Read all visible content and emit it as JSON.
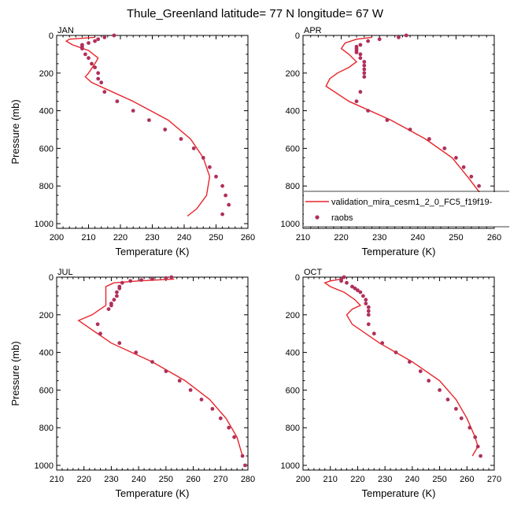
{
  "title": "Thule_Greenland  latitude= 77 N longitude= 67 W",
  "colors": {
    "model": "#e8242a",
    "obs": "#b0305a"
  },
  "legend": {
    "model_label": "validation_mira_cesm1_2_0_FC5_f19f19-",
    "obs_label": "raobs"
  },
  "chart_data": [
    {
      "type": "line",
      "month": "JAN",
      "xlabel": "Temperature (K)",
      "ylabel": "Pressure (mb)",
      "xlim": [
        200,
        260
      ],
      "ylim": [
        1025,
        0
      ],
      "xticks": [
        "200",
        "210",
        "220",
        "230",
        "240",
        "250",
        "260"
      ],
      "yticks": [
        "0",
        "200",
        "400",
        "600",
        "800",
        "1000"
      ],
      "model": {
        "t": [
          212,
          208,
          204,
          203,
          205,
          210,
          213,
          212,
          210,
          209,
          211,
          224,
          235,
          242,
          246,
          248,
          247,
          244,
          241
        ],
        "p": [
          10,
          15,
          20,
          30,
          50,
          80,
          120,
          150,
          200,
          220,
          250,
          350,
          450,
          550,
          650,
          750,
          850,
          920,
          960
        ]
      },
      "obs": {
        "t": [
          218,
          215,
          213,
          212,
          210,
          208,
          208,
          208,
          209,
          210,
          211,
          212,
          213,
          213,
          214,
          215,
          219,
          224,
          229,
          234,
          239,
          243,
          246,
          248,
          250,
          252,
          253,
          254,
          252
        ],
        "p": [
          0,
          10,
          20,
          30,
          40,
          50,
          60,
          70,
          100,
          120,
          150,
          170,
          200,
          230,
          250,
          300,
          350,
          400,
          450,
          500,
          550,
          600,
          650,
          700,
          750,
          800,
          850,
          900,
          950
        ]
      }
    },
    {
      "type": "line",
      "month": "APR",
      "xlabel": "Temperature (K)",
      "ylabel": "",
      "xlim": [
        210,
        260
      ],
      "ylim": [
        1025,
        0
      ],
      "xticks": [
        "210",
        "220",
        "230",
        "240",
        "250",
        "260"
      ],
      "yticks": [
        "0",
        "200",
        "400",
        "600",
        "800",
        "1000"
      ],
      "model": {
        "t": [
          228,
          224,
          221,
          220,
          222,
          224,
          222,
          219,
          217,
          216,
          222,
          233,
          242,
          249,
          253,
          256,
          257,
          257,
          256
        ],
        "p": [
          10,
          20,
          40,
          70,
          100,
          140,
          170,
          200,
          230,
          270,
          350,
          450,
          550,
          650,
          750,
          830,
          880,
          930,
          970
        ]
      },
      "obs": {
        "t": [
          237,
          235,
          230,
          227,
          225,
          224,
          224,
          224,
          224,
          225,
          225,
          226,
          226,
          226,
          226,
          226,
          225,
          224,
          227,
          232,
          238,
          243,
          247,
          250,
          252,
          254,
          256,
          257,
          257,
          257
        ],
        "p": [
          0,
          10,
          20,
          30,
          50,
          60,
          70,
          80,
          90,
          100,
          120,
          140,
          160,
          180,
          200,
          220,
          300,
          350,
          400,
          450,
          500,
          550,
          600,
          650,
          700,
          750,
          800,
          850,
          900,
          950
        ]
      }
    },
    {
      "type": "line",
      "month": "JUL",
      "xlabel": "Temperature (K)",
      "ylabel": "Pressure (mb)",
      "xlim": [
        210,
        280
      ],
      "ylim": [
        1025,
        0
      ],
      "xticks": [
        "210",
        "220",
        "230",
        "240",
        "250",
        "260",
        "270",
        "280"
      ],
      "yticks": [
        "0",
        "200",
        "400",
        "600",
        "800",
        "1000"
      ],
      "model": {
        "t": [
          253,
          240,
          231,
          228,
          228,
          228,
          226,
          223,
          218,
          220,
          230,
          245,
          257,
          266,
          272,
          276,
          278
        ],
        "p": [
          10,
          20,
          30,
          50,
          100,
          150,
          170,
          200,
          230,
          250,
          350,
          450,
          550,
          650,
          750,
          850,
          950
        ]
      },
      "obs": {
        "t": [
          252,
          250,
          245,
          241,
          237,
          234,
          233,
          233,
          232,
          232,
          231,
          230,
          230,
          229,
          225,
          226,
          233,
          239,
          245,
          250,
          255,
          259,
          263,
          267,
          270,
          273,
          275,
          278,
          279
        ],
        "p": [
          0,
          5,
          10,
          15,
          20,
          30,
          50,
          60,
          80,
          100,
          120,
          140,
          150,
          170,
          250,
          300,
          350,
          400,
          450,
          500,
          550,
          600,
          650,
          700,
          750,
          800,
          850,
          950,
          1000
        ]
      }
    },
    {
      "type": "line",
      "month": "OCT",
      "xlabel": "Temperature (K)",
      "ylabel": "",
      "xlim": [
        200,
        270
      ],
      "ylim": [
        1025,
        0
      ],
      "xticks": [
        "200",
        "210",
        "220",
        "230",
        "240",
        "250",
        "260",
        "270"
      ],
      "yticks": [
        "0",
        "200",
        "400",
        "600",
        "800",
        "1000"
      ],
      "model": {
        "t": [
          214,
          210,
          208,
          210,
          215,
          219,
          221,
          218,
          216,
          218,
          228,
          240,
          250,
          256,
          260,
          263,
          264,
          262
        ],
        "p": [
          10,
          20,
          30,
          50,
          80,
          120,
          150,
          170,
          200,
          250,
          350,
          450,
          550,
          650,
          750,
          850,
          900,
          950
        ]
      },
      "obs": {
        "t": [
          215,
          214,
          214,
          216,
          218,
          219,
          220,
          221,
          222,
          223,
          223,
          224,
          224,
          224,
          224,
          226,
          229,
          234,
          239,
          243,
          246,
          250,
          253,
          256,
          258,
          261,
          263,
          264,
          265
        ],
        "p": [
          0,
          10,
          20,
          30,
          50,
          60,
          70,
          80,
          100,
          120,
          140,
          160,
          180,
          200,
          250,
          300,
          350,
          400,
          450,
          500,
          550,
          600,
          650,
          700,
          750,
          800,
          850,
          900,
          950
        ]
      }
    }
  ]
}
